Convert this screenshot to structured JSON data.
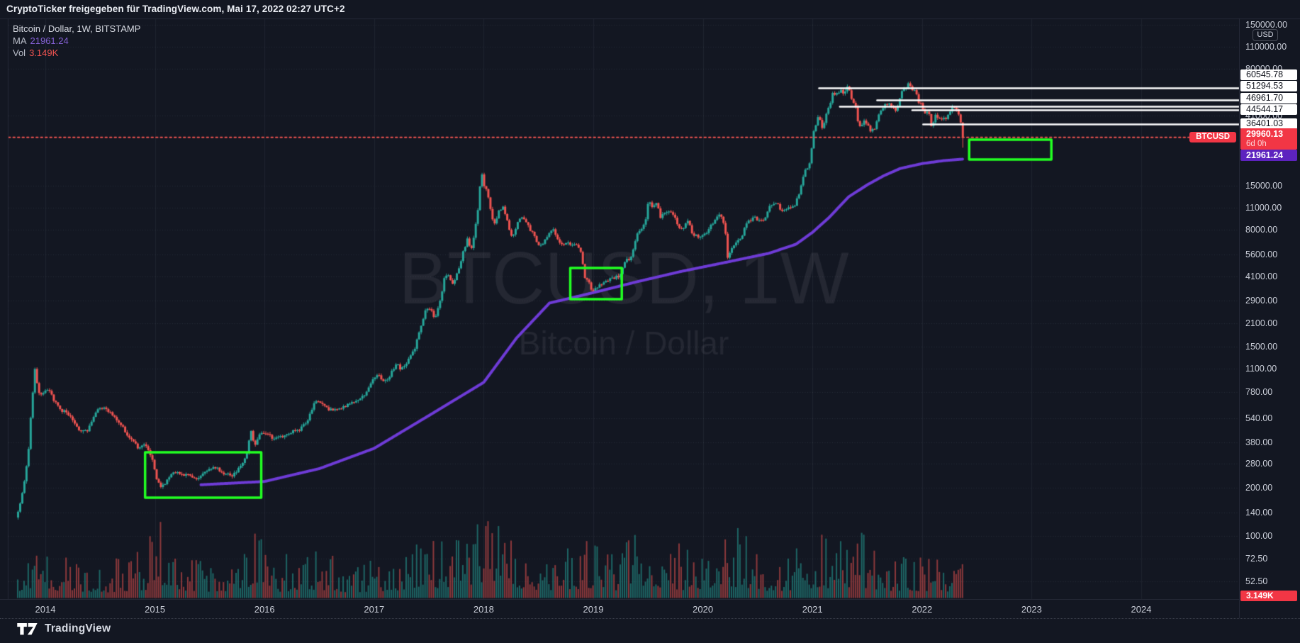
{
  "header": {
    "attribution": "CryptoTicker freigegeben für TradingView.com, Mai 17, 2022 02:27 UTC+2"
  },
  "legend": {
    "title": "Bitcoin / Dollar, 1W, BITSTAMP",
    "ma_label": "MA",
    "ma_value": "21961.24",
    "vol_label": "Vol",
    "vol_value": "3.149K"
  },
  "watermark": {
    "line1": "BTCUSD, 1W",
    "line2": "Bitcoin / Dollar"
  },
  "price_axis": {
    "currency_button": "USD",
    "ticks": [
      "150000.00",
      "110000.00",
      "80000.00",
      "41000.00",
      "15000.00",
      "11000.00",
      "8000.00",
      "5600.00",
      "4100.00",
      "2900.00",
      "2100.00",
      "1500.00",
      "1100.00",
      "780.00",
      "540.00",
      "380.00",
      "280.00",
      "200.00",
      "140.00",
      "100.00",
      "72.50",
      "52.50"
    ],
    "level_badges": [
      "60545.78",
      "51294.53",
      "46961.70",
      "44544.17",
      "36401.03"
    ],
    "price_badge": {
      "symbol": "BTCUSD",
      "price": "29960.13",
      "countdown": "6d 0h"
    },
    "ma_badge": "21961.24",
    "vol_badge": "3.149K"
  },
  "time_axis": {
    "years": [
      "2014",
      "2015",
      "2016",
      "2017",
      "2018",
      "2019",
      "2020",
      "2021",
      "2022",
      "2023",
      "2024"
    ]
  },
  "footer": {
    "brand": "TradingView"
  },
  "colors": {
    "background": "#131722",
    "grid": "#b8c0d6",
    "up": "#26a69a",
    "down": "#ef5350",
    "ma_line": "#6e3bd6",
    "ma_badge": "#5d23bf",
    "level_line": "#ffffff",
    "price_line": "#ef5350",
    "box_green": "#22ff22",
    "badge_red": "#f23645",
    "watermark": "rgba(206,212,226,0.09)"
  },
  "chart_data": {
    "type": "candlestick",
    "symbol": "BTCUSD",
    "exchange": "BITSTAMP",
    "timeframe": "1W",
    "scale": "log",
    "title": "Bitcoin / Dollar, 1W, BITSTAMP",
    "y_axis": {
      "label": "USD",
      "ticks": [
        150000,
        110000,
        80000,
        41000,
        15000,
        11000,
        8000,
        5600,
        4100,
        2900,
        2100,
        1500,
        1100,
        780,
        540,
        380,
        280,
        200,
        140,
        100,
        72.5,
        52.5
      ]
    },
    "x_axis": {
      "years": [
        2014,
        2015,
        2016,
        2017,
        2018,
        2019,
        2020,
        2021,
        2022,
        2023,
        2024
      ]
    },
    "last_close": 29960.13,
    "last_low": 25850,
    "countdown": "6d 0h",
    "current_price_line": {
      "price": 29960.13,
      "style": "dotted"
    },
    "levels": [
      {
        "price": 60545.78,
        "from_year": 2021.06
      },
      {
        "price": 51294.53,
        "from_year": 2021.59
      },
      {
        "price": 46961.7,
        "from_year": 2021.25
      },
      {
        "price": 44544.17,
        "from_year": 2021.91
      },
      {
        "price": 36401.03,
        "from_year": 2022.01
      }
    ],
    "boxes": [
      {
        "year_start": 2014.91,
        "year_end": 2015.97,
        "price_top": 331,
        "price_bottom": 173
      },
      {
        "year_start": 2018.79,
        "year_end": 2019.26,
        "price_top": 4625,
        "price_bottom": 2962
      },
      {
        "year_start": 2022.43,
        "year_end": 2023.18,
        "price_top": 29010,
        "price_bottom": 21840
      }
    ],
    "ma": {
      "value": 21961.24,
      "points": [
        [
          2015.42,
          208
        ],
        [
          2016.0,
          218
        ],
        [
          2016.5,
          262
        ],
        [
          2017.0,
          350
        ],
        [
          2017.5,
          560
        ],
        [
          2018.0,
          900
        ],
        [
          2018.3,
          1700
        ],
        [
          2018.6,
          2800
        ],
        [
          2019.0,
          3250
        ],
        [
          2019.4,
          3800
        ],
        [
          2019.8,
          4400
        ],
        [
          2020.2,
          5000
        ],
        [
          2020.6,
          5700
        ],
        [
          2020.85,
          6500
        ],
        [
          2021.0,
          7700
        ],
        [
          2021.15,
          9500
        ],
        [
          2021.33,
          12800
        ],
        [
          2021.5,
          15200
        ],
        [
          2021.65,
          17300
        ],
        [
          2021.8,
          19200
        ],
        [
          2022.0,
          20600
        ],
        [
          2022.2,
          21500
        ],
        [
          2022.375,
          21961
        ]
      ]
    },
    "weekly_close_anchors": [
      [
        2013.748,
        140
      ],
      [
        2013.79,
        190
      ],
      [
        2013.84,
        320
      ],
      [
        2013.87,
        630
      ],
      [
        2013.9,
        1120
      ],
      [
        2013.93,
        780
      ],
      [
        2013.97,
        745
      ],
      [
        2014.02,
        830
      ],
      [
        2014.08,
        680
      ],
      [
        2014.15,
        600
      ],
      [
        2014.22,
        570
      ],
      [
        2014.3,
        455
      ],
      [
        2014.38,
        445
      ],
      [
        2014.46,
        590
      ],
      [
        2014.52,
        630
      ],
      [
        2014.6,
        585
      ],
      [
        2014.68,
        500
      ],
      [
        2014.76,
        410
      ],
      [
        2014.84,
        355
      ],
      [
        2014.9,
        375
      ],
      [
        2014.96,
        320
      ],
      [
        2015.02,
        215
      ],
      [
        2015.06,
        200
      ],
      [
        2015.12,
        230
      ],
      [
        2015.18,
        250
      ],
      [
        2015.25,
        240
      ],
      [
        2015.32,
        235
      ],
      [
        2015.4,
        228
      ],
      [
        2015.48,
        262
      ],
      [
        2015.55,
        268
      ],
      [
        2015.62,
        242
      ],
      [
        2015.7,
        238
      ],
      [
        2015.78,
        268
      ],
      [
        2015.84,
        330
      ],
      [
        2015.87,
        455
      ],
      [
        2015.91,
        362
      ],
      [
        2015.96,
        432
      ],
      [
        2016.02,
        435
      ],
      [
        2016.09,
        398
      ],
      [
        2016.16,
        418
      ],
      [
        2016.24,
        442
      ],
      [
        2016.32,
        455
      ],
      [
        2016.4,
        540
      ],
      [
        2016.46,
        695
      ],
      [
        2016.51,
        672
      ],
      [
        2016.58,
        605
      ],
      [
        2016.66,
        618
      ],
      [
        2016.74,
        640
      ],
      [
        2016.82,
        695
      ],
      [
        2016.9,
        738
      ],
      [
        2016.98,
        935
      ],
      [
        2017.04,
        1005
      ],
      [
        2017.09,
        895
      ],
      [
        2017.15,
        1015
      ],
      [
        2017.2,
        1190
      ],
      [
        2017.24,
        1085
      ],
      [
        2017.3,
        1210
      ],
      [
        2017.36,
        1420
      ],
      [
        2017.42,
        1950
      ],
      [
        2017.47,
        2550
      ],
      [
        2017.51,
        2620
      ],
      [
        2017.55,
        2250
      ],
      [
        2017.6,
        2850
      ],
      [
        2017.64,
        4150
      ],
      [
        2017.68,
        4280
      ],
      [
        2017.71,
        3640
      ],
      [
        2017.76,
        4420
      ],
      [
        2017.81,
        5800
      ],
      [
        2017.85,
        7150
      ],
      [
        2017.88,
        5900
      ],
      [
        2017.92,
        8250
      ],
      [
        2017.95,
        11200
      ],
      [
        2017.975,
        19100
      ],
      [
        2018.0,
        15100
      ],
      [
        2018.03,
        13500
      ],
      [
        2018.05,
        11300
      ],
      [
        2018.09,
        8400
      ],
      [
        2018.13,
        10300
      ],
      [
        2018.17,
        11100
      ],
      [
        2018.22,
        8600
      ],
      [
        2018.26,
        7000
      ],
      [
        2018.31,
        8950
      ],
      [
        2018.35,
        9650
      ],
      [
        2018.4,
        8450
      ],
      [
        2018.45,
        7500
      ],
      [
        2018.5,
        6450
      ],
      [
        2018.55,
        6700
      ],
      [
        2018.59,
        7380
      ],
      [
        2018.63,
        8150
      ],
      [
        2018.67,
        7050
      ],
      [
        2018.71,
        6550
      ],
      [
        2018.76,
        6700
      ],
      [
        2018.81,
        6480
      ],
      [
        2018.86,
        6400
      ],
      [
        2018.89,
        5650
      ],
      [
        2018.92,
        4050
      ],
      [
        2018.96,
        3700
      ],
      [
        2018.995,
        3250
      ],
      [
        2019.04,
        3580
      ],
      [
        2019.09,
        3680
      ],
      [
        2019.14,
        3920
      ],
      [
        2019.19,
        4020
      ],
      [
        2019.24,
        4120
      ],
      [
        2019.29,
        5120
      ],
      [
        2019.34,
        5350
      ],
      [
        2019.39,
        7250
      ],
      [
        2019.43,
        8050
      ],
      [
        2019.47,
        8850
      ],
      [
        2019.5,
        12300
      ],
      [
        2019.54,
        10900
      ],
      [
        2019.57,
        11900
      ],
      [
        2019.61,
        9600
      ],
      [
        2019.66,
        10350
      ],
      [
        2019.7,
        10400
      ],
      [
        2019.74,
        9680
      ],
      [
        2019.78,
        8150
      ],
      [
        2019.83,
        8350
      ],
      [
        2019.86,
        9250
      ],
      [
        2019.9,
        7550
      ],
      [
        2019.95,
        7250
      ],
      [
        2020.0,
        7250
      ],
      [
        2020.05,
        8050
      ],
      [
        2020.1,
        9150
      ],
      [
        2020.14,
        10050
      ],
      [
        2020.17,
        9650
      ],
      [
        2020.2,
        8050
      ],
      [
        2020.225,
        5300
      ],
      [
        2020.26,
        6250
      ],
      [
        2020.31,
        6850
      ],
      [
        2020.35,
        7150
      ],
      [
        2020.39,
        8850
      ],
      [
        2020.43,
        9150
      ],
      [
        2020.47,
        9450
      ],
      [
        2020.52,
        9150
      ],
      [
        2020.56,
        9250
      ],
      [
        2020.6,
        11150
      ],
      [
        2020.64,
        11800
      ],
      [
        2020.68,
        11500
      ],
      [
        2020.72,
        10450
      ],
      [
        2020.76,
        10750
      ],
      [
        2020.8,
        10850
      ],
      [
        2020.84,
        11550
      ],
      [
        2020.87,
        13050
      ],
      [
        2020.9,
        15500
      ],
      [
        2020.93,
        18700
      ],
      [
        2020.96,
        19150
      ],
      [
        2020.985,
        23800
      ],
      [
        2021.005,
        32100
      ],
      [
        2021.03,
        35500
      ],
      [
        2021.05,
        40600
      ],
      [
        2021.07,
        38250
      ],
      [
        2021.09,
        32300
      ],
      [
        2021.11,
        38150
      ],
      [
        2021.14,
        46350
      ],
      [
        2021.16,
        48900
      ],
      [
        2021.18,
        57400
      ],
      [
        2021.2,
        54150
      ],
      [
        2021.23,
        57350
      ],
      [
        2021.26,
        58950
      ],
      [
        2021.28,
        55950
      ],
      [
        2021.3,
        58250
      ],
      [
        2021.32,
        63500
      ],
      [
        2021.34,
        56250
      ],
      [
        2021.37,
        49050
      ],
      [
        2021.39,
        46750
      ],
      [
        2021.41,
        37350
      ],
      [
        2021.44,
        34750
      ],
      [
        2021.47,
        38650
      ],
      [
        2021.49,
        35650
      ],
      [
        2021.51,
        34750
      ],
      [
        2021.53,
        31650
      ],
      [
        2021.55,
        34350
      ],
      [
        2021.57,
        33550
      ],
      [
        2021.59,
        39950
      ],
      [
        2021.61,
        42250
      ],
      [
        2021.64,
        45650
      ],
      [
        2021.66,
        48850
      ],
      [
        2021.68,
        47150
      ],
      [
        2021.7,
        48950
      ],
      [
        2021.72,
        46850
      ],
      [
        2021.74,
        44750
      ],
      [
        2021.76,
        42850
      ],
      [
        2021.78,
        48250
      ],
      [
        2021.8,
        54750
      ],
      [
        2021.82,
        61650
      ],
      [
        2021.84,
        60950
      ],
      [
        2021.86,
        61550
      ],
      [
        2021.88,
        65500
      ],
      [
        2021.9,
        58050
      ],
      [
        2021.92,
        59750
      ],
      [
        2021.94,
        57350
      ],
      [
        2021.96,
        49350
      ],
      [
        2021.98,
        50550
      ],
      [
        2022.0,
        46350
      ],
      [
        2022.02,
        41650
      ],
      [
        2022.04,
        43150
      ],
      [
        2022.06,
        42350
      ],
      [
        2022.08,
        35150
      ],
      [
        2022.1,
        37050
      ],
      [
        2022.12,
        42450
      ],
      [
        2022.14,
        40150
      ],
      [
        2022.16,
        38450
      ],
      [
        2022.18,
        39050
      ],
      [
        2022.2,
        39450
      ],
      [
        2022.22,
        38350
      ],
      [
        2022.24,
        42250
      ],
      [
        2022.26,
        44550
      ],
      [
        2022.28,
        46350
      ],
      [
        2022.3,
        45850
      ],
      [
        2022.32,
        42350
      ],
      [
        2022.34,
        39750
      ],
      [
        2022.355,
        36050
      ],
      [
        2022.375,
        29960.13
      ]
    ],
    "volume_envelope": [
      [
        2013.75,
        0.5
      ],
      [
        2013.95,
        0.75
      ],
      [
        2014.15,
        0.5
      ],
      [
        2014.5,
        0.38
      ],
      [
        2014.9,
        0.55
      ],
      [
        2015.04,
        1.0
      ],
      [
        2015.3,
        0.5
      ],
      [
        2015.6,
        0.4
      ],
      [
        2015.87,
        0.85
      ],
      [
        2016.1,
        0.45
      ],
      [
        2016.45,
        0.6
      ],
      [
        2016.8,
        0.4
      ],
      [
        2017.1,
        0.5
      ],
      [
        2017.45,
        0.65
      ],
      [
        2017.7,
        0.8
      ],
      [
        2017.97,
        0.95
      ],
      [
        2018.12,
        1.0
      ],
      [
        2018.35,
        0.7
      ],
      [
        2018.65,
        0.5
      ],
      [
        2018.98,
        0.7
      ],
      [
        2019.25,
        0.55
      ],
      [
        2019.5,
        0.9
      ],
      [
        2019.8,
        0.6
      ],
      [
        2020.05,
        0.55
      ],
      [
        2020.23,
        0.9
      ],
      [
        2020.55,
        0.5
      ],
      [
        2020.85,
        0.55
      ],
      [
        2021.05,
        0.8
      ],
      [
        2021.25,
        0.65
      ],
      [
        2021.45,
        0.75
      ],
      [
        2021.65,
        0.55
      ],
      [
        2021.9,
        0.5
      ],
      [
        2022.1,
        0.45
      ],
      [
        2022.37,
        0.5
      ]
    ],
    "last_volume": "3.149K"
  }
}
